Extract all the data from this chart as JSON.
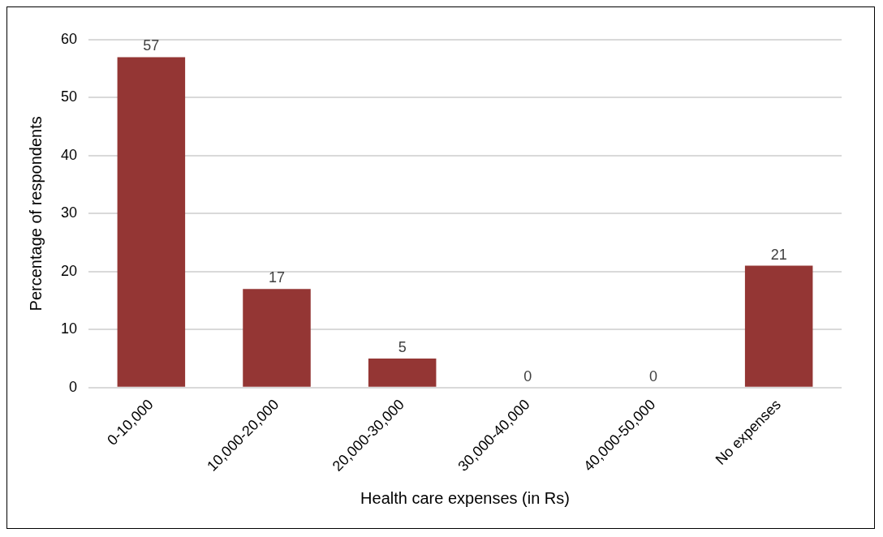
{
  "chart_data": {
    "type": "bar",
    "xlabel": "Health care expenses (in Rs)",
    "ylabel": "Percentage of respondents",
    "categories": [
      "0-10,000",
      "10,000-20,000",
      "20,000-30,000",
      "30,000-40,000",
      "40,000-50,000",
      "No expenses"
    ],
    "values": [
      57,
      17,
      5,
      0,
      0,
      21
    ],
    "color": "#943634",
    "ylim": [
      0,
      60
    ],
    "yticks": [
      0,
      10,
      20,
      30,
      40,
      50,
      60
    ],
    "grid": "y",
    "legend": false,
    "data_labels": true
  }
}
